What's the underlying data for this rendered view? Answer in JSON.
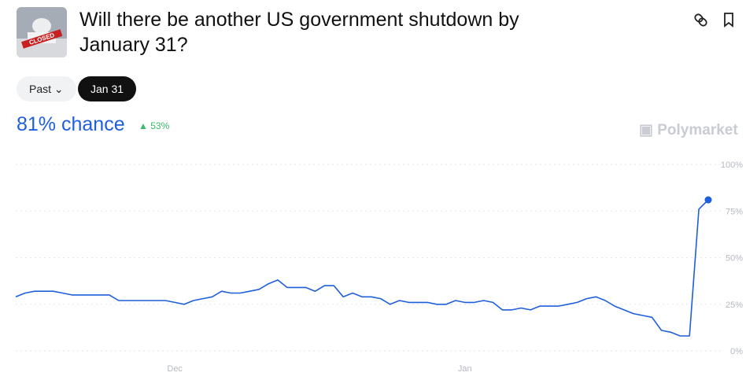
{
  "header": {
    "title": "Will there be another US government shutdown by January 31?",
    "image_label": "CLOSED",
    "buttons": [
      "Past",
      "Jan 31"
    ],
    "chance": "81% chance",
    "change": "53%",
    "brand": "Polymarket"
  },
  "chart_data": {
    "type": "line",
    "color": "#1f5fdb",
    "x": [
      0,
      1,
      2,
      3,
      4,
      5,
      6,
      7,
      8,
      9,
      10,
      11,
      12,
      13,
      14,
      15,
      16,
      17,
      18,
      19,
      20,
      21,
      22,
      23,
      24,
      25,
      26,
      27,
      28,
      29,
      30,
      31,
      32,
      33,
      34,
      35,
      36,
      37,
      38,
      39,
      40,
      41,
      42,
      43,
      44,
      45,
      46,
      47,
      48,
      49,
      50,
      51,
      52,
      53,
      54,
      55,
      56,
      57,
      58,
      59,
      60,
      61,
      62,
      63,
      64,
      65,
      66,
      67,
      68,
      69,
      70,
      71,
      72,
      73,
      74
    ],
    "values": [
      29,
      31,
      32,
      32,
      32,
      31,
      30,
      30,
      30,
      30,
      30,
      27,
      27,
      27,
      27,
      27,
      27,
      26,
      25,
      27,
      28,
      29,
      32,
      31,
      31,
      32,
      33,
      36,
      38,
      34,
      34,
      34,
      32,
      35,
      35,
      29,
      31,
      29,
      29,
      28,
      25,
      27,
      26,
      26,
      26,
      25,
      25,
      27,
      26,
      26,
      27,
      26,
      22,
      22,
      23,
      22,
      24,
      24,
      24,
      25,
      26,
      28,
      29,
      27,
      24,
      22,
      20,
      19,
      18,
      11,
      10,
      8,
      8,
      76,
      81
    ],
    "xlim": [
      0,
      74
    ],
    "xticks": [
      {
        "value": 17,
        "label": "Dec"
      },
      {
        "value": 48,
        "label": "Jan"
      }
    ],
    "ylim": [
      0,
      100
    ],
    "yticks": [
      {
        "value": 0,
        "label": "0%"
      },
      {
        "value": 25,
        "label": "25%"
      },
      {
        "value": 50,
        "label": "50%"
      },
      {
        "value": 75,
        "label": "75%"
      },
      {
        "value": 100,
        "label": "100%"
      }
    ],
    "grid": true
  }
}
